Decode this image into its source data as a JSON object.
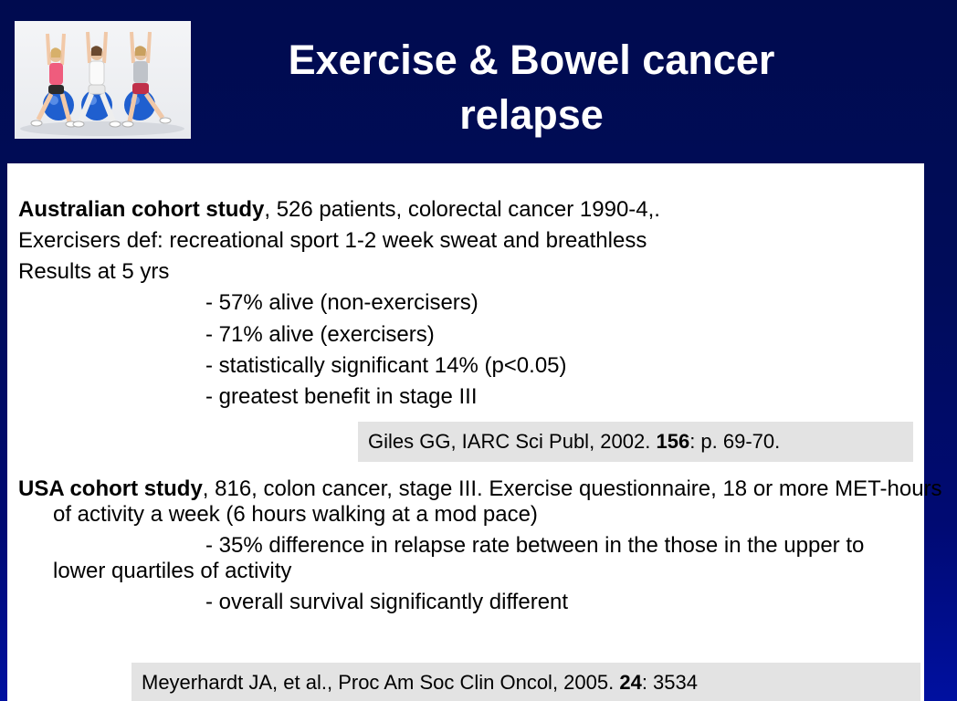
{
  "slide": {
    "title": "Exercise & Bowel cancer relapse",
    "photo_description": "three women exercising on blue balls"
  },
  "study1": {
    "heading": "Australian cohort study",
    "heading_rest": ", 526 patients, colorectal cancer 1990-4,.",
    "line2": "Exercisers def: recreational sport 1-2 week sweat and breathless",
    "line3": "Results at 5 yrs",
    "results": [
      "- 57% alive (non-exercisers)",
      "- 71% alive (exercisers)",
      "- statistically significant 14% (p<0.05)",
      "- greatest benefit in stage III"
    ],
    "citation": {
      "prefix": "Giles GG, IARC Sci Publ, 2002. ",
      "volume": "156",
      "suffix": ": p. 69-70."
    }
  },
  "study2": {
    "heading": "USA cohort study",
    "heading_rest": ", 816, colon cancer, stage III. Exercise questionnaire, 18 or more MET-hours of activity a week (6 hours walking at a mod pace)",
    "result1": "- 35% difference in relapse rate between in the those in the upper to lower quartiles of activity",
    "result2": "- overall survival significantly different",
    "citation": {
      "prefix": "Meyerhardt JA, et al., Proc Am Soc Clin Oncol, 2005. ",
      "volume": "24",
      "suffix": ":  3534"
    }
  },
  "colors": {
    "background": "#000c5a",
    "panel": "#ffffff",
    "citation_box": "#e3e3e3",
    "exercise_ball": "#1f5fcf"
  }
}
